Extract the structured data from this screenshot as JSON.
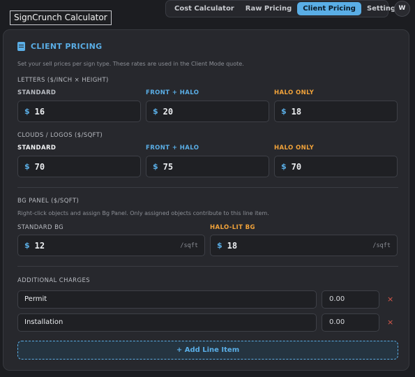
{
  "app": {
    "title": "SignCrunch Calculator",
    "avatar": "W"
  },
  "tabs": [
    {
      "label": "Cost Calculator",
      "active": false
    },
    {
      "label": "Raw Pricing",
      "active": false
    },
    {
      "label": "Client Pricing",
      "active": true
    },
    {
      "label": "Settings",
      "active": false
    }
  ],
  "client_pricing": {
    "title": "CLIENT PRICING",
    "icon": "document-icon",
    "description": "Set your sell prices per sign type. These rates are used in the Client Mode quote.",
    "currency": "$",
    "letters": {
      "heading": "LETTERS ($/INCH × HEIGHT)",
      "fields": [
        {
          "label": "STANDARD",
          "value": "16"
        },
        {
          "label": "FRONT + HALO",
          "value": "20"
        },
        {
          "label": "HALO ONLY",
          "value": "18"
        }
      ]
    },
    "clouds": {
      "heading": "CLOUDS / LOGOS ($/SQFT)",
      "fields": [
        {
          "label": "STANDARD",
          "value": "70"
        },
        {
          "label": "FRONT + HALO",
          "value": "75"
        },
        {
          "label": "HALO ONLY",
          "value": "70"
        }
      ]
    },
    "bg_panel": {
      "heading": "BG PANEL ($/SQFT)",
      "description": "Right-click objects and assign Bg Panel. Only assigned objects contribute to this line item.",
      "unit": "/sqft",
      "fields": [
        {
          "label": "STANDARD BG",
          "value": "12"
        },
        {
          "label": "HALO-LIT BG",
          "value": "18"
        }
      ]
    },
    "additional": {
      "heading": "ADDITIONAL CHARGES",
      "items": [
        {
          "name": "Permit",
          "amount": "0.00"
        },
        {
          "name": "Installation",
          "amount": "0.00"
        }
      ],
      "remove_glyph": "×",
      "add_label": "+ Add Line Item"
    }
  },
  "colors": {
    "accent": "#5aaee6",
    "halo": "#f2a33a",
    "remove": "#e05a4b",
    "background": "#1c1d21",
    "panel": "#27282d"
  }
}
